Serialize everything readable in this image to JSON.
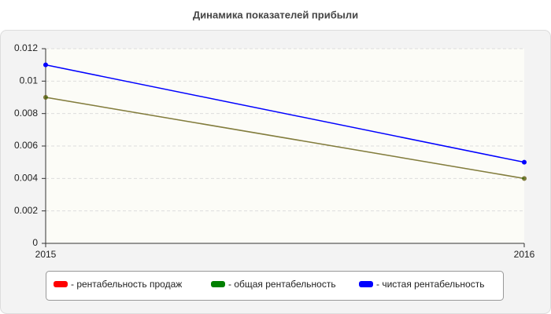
{
  "chart_data": {
    "type": "line",
    "title": "Динамика показателей прибыли",
    "categories": [
      "2015",
      "2016"
    ],
    "series": [
      {
        "name": "- рентабельность продаж",
        "color": "#ff0000",
        "values": [
          0.009,
          0.004
        ]
      },
      {
        "name": "- общая рентабельность",
        "color": "#008000",
        "values": [
          0.009,
          0.004
        ]
      },
      {
        "name": "- чистая рентабельность",
        "color": "#0000ff",
        "values": [
          0.011,
          0.005
        ]
      }
    ],
    "ylim": [
      0,
      0.012
    ],
    "yticks": [
      0,
      0.002,
      0.004,
      0.006,
      0.008,
      0.01,
      0.012
    ],
    "grid": true
  }
}
